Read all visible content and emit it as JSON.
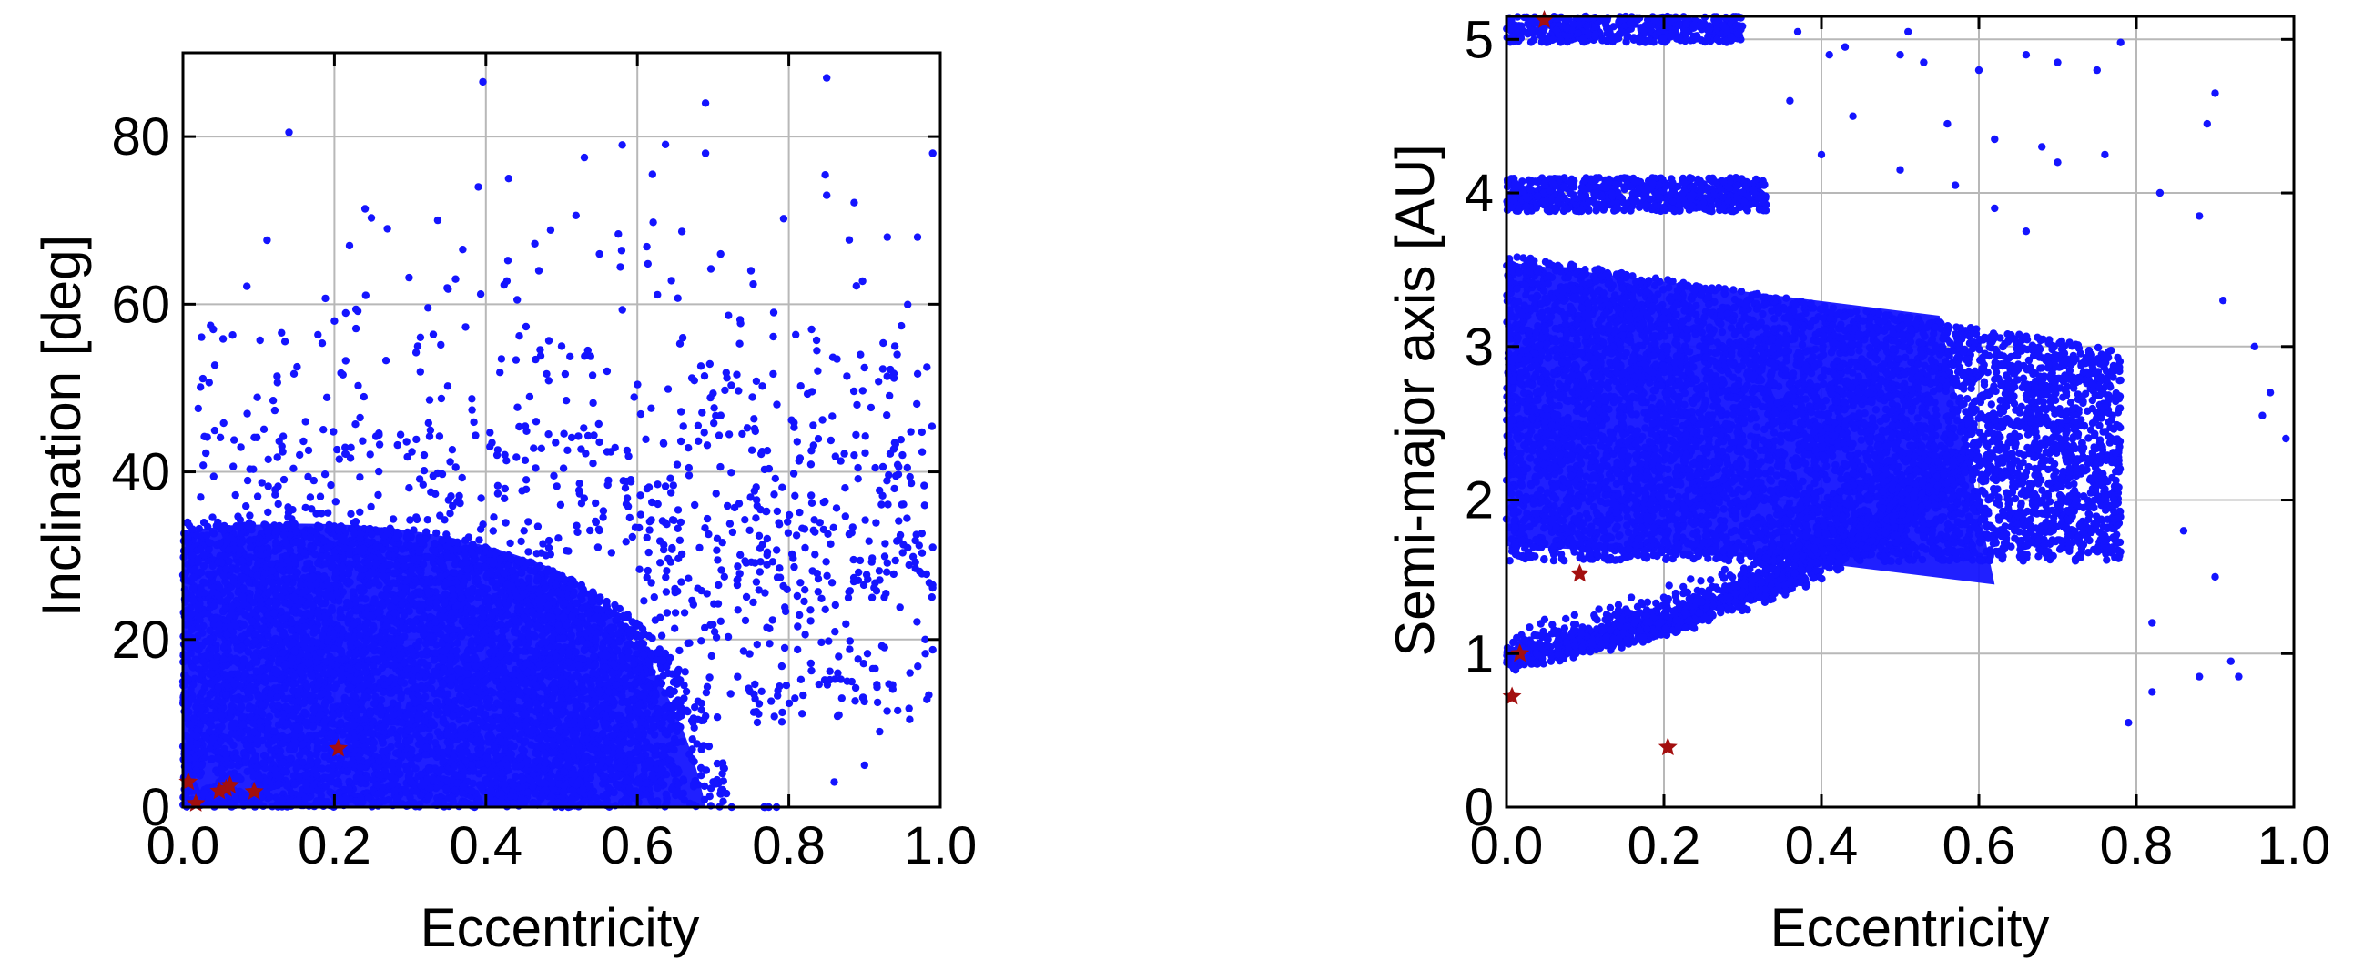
{
  "colors": {
    "asteroids": "#1414ff",
    "highlighted": "#a30f0f",
    "grid": "#b8b8b8",
    "frame": "#000000"
  },
  "chart_data": [
    {
      "type": "scatter",
      "xlabel": "Eccentricity",
      "ylabel": "Inclination [deg]",
      "xlim": [
        0.0,
        1.0
      ],
      "ylim": [
        0,
        90
      ],
      "xticks": [
        "0.0",
        "0.2",
        "0.4",
        "0.6",
        "0.8",
        "1.0"
      ],
      "xtick_values": [
        0.0,
        0.2,
        0.4,
        0.6,
        0.8,
        1.0
      ],
      "yticks": [
        "0",
        "20",
        "40",
        "60",
        "80"
      ],
      "ytick_values": [
        0,
        20,
        40,
        60,
        80
      ],
      "grid": true,
      "series": [
        {
          "marker": "dot",
          "color": "#1414ff",
          "density_model": "bulk of points concentrated at e < 0.7, i < 35 deg, with a sparse tail toward high e and high i",
          "points": [
            [
              0.14,
              80.5
            ],
            [
              0.53,
              77.5
            ],
            [
              0.58,
              79
            ],
            [
              0.69,
              84
            ],
            [
              0.69,
              78
            ],
            [
              0.85,
              87
            ],
            [
              0.99,
              78
            ],
            [
              0.85,
              73
            ],
            [
              0.93,
              68
            ],
            [
              0.22,
              67
            ],
            [
              0.27,
              69
            ],
            [
              0.39,
              74
            ],
            [
              0.43,
              75
            ],
            [
              0.62,
              75.5
            ],
            [
              0.36,
              63
            ],
            [
              0.47,
              64
            ],
            [
              0.55,
              66
            ],
            [
              0.71,
              66
            ],
            [
              0.75,
              64
            ],
            [
              0.04,
              57
            ],
            [
              0.2,
              58
            ],
            [
              0.31,
              55
            ],
            [
              0.5,
              55
            ],
            [
              0.56,
              52
            ],
            [
              0.66,
              56
            ],
            [
              0.78,
              59
            ],
            [
              0.83,
              57
            ],
            [
              0.94,
              55
            ],
            [
              0.97,
              68
            ],
            [
              0.89,
              48
            ],
            [
              0.95,
              42
            ],
            [
              0.99,
              31
            ],
            [
              0.98,
              20
            ],
            [
              0.96,
              16
            ],
            [
              0.91,
              25
            ],
            [
              0.92,
              9
            ],
            [
              0.87,
              13
            ],
            [
              0.9,
              5
            ],
            [
              0.86,
              3
            ]
          ]
        },
        {
          "marker": "star",
          "color": "#a30f0f",
          "points": [
            [
              0.007,
              3
            ],
            [
              0.017,
              0.4
            ],
            [
              0.048,
              1.9
            ],
            [
              0.057,
              2.2
            ],
            [
              0.062,
              2.6
            ],
            [
              0.094,
              1.85
            ],
            [
              0.205,
              7.0
            ]
          ]
        }
      ]
    },
    {
      "type": "scatter",
      "xlabel": "Eccentricity",
      "ylabel": "Semi-major axis [AU]",
      "xlim": [
        0.0,
        1.0
      ],
      "ylim": [
        0,
        5.15
      ],
      "xticks": [
        "0.0",
        "0.2",
        "0.4",
        "0.6",
        "0.8",
        "1.0"
      ],
      "xtick_values": [
        0.0,
        0.2,
        0.4,
        0.6,
        0.8,
        1.0
      ],
      "yticks": [
        "0",
        "1",
        "2",
        "3",
        "4",
        "5"
      ],
      "ytick_values": [
        0,
        1,
        2,
        3,
        4,
        5
      ],
      "grid": true,
      "series": [
        {
          "marker": "dot",
          "color": "#1414ff",
          "density_model": "main belt band a 1.6-3.6 AU across e 0-0.75; Hilda group near a 3.9-4.1 AU at e < 0.35; Trojan group near a 5.0-5.15 AU at e < 0.3; near-Earth objects along the perihelion edge a(1-e) > ~0.9 AU",
          "points": [
            [
              0.37,
              5.05
            ],
            [
              0.41,
              4.9
            ],
            [
              0.43,
              4.95
            ],
            [
              0.5,
              4.9
            ],
            [
              0.51,
              5.05
            ],
            [
              0.53,
              4.85
            ],
            [
              0.6,
              4.8
            ],
            [
              0.66,
              4.9
            ],
            [
              0.7,
              4.85
            ],
            [
              0.75,
              4.8
            ],
            [
              0.78,
              4.98
            ],
            [
              0.89,
              4.45
            ],
            [
              0.9,
              4.65
            ],
            [
              0.36,
              4.6
            ],
            [
              0.44,
              4.5
            ],
            [
              0.56,
              4.45
            ],
            [
              0.62,
              4.35
            ],
            [
              0.68,
              4.3
            ],
            [
              0.7,
              4.2
            ],
            [
              0.76,
              4.25
            ],
            [
              0.83,
              4.0
            ],
            [
              0.88,
              3.85
            ],
            [
              0.91,
              3.3
            ],
            [
              0.95,
              3.0
            ],
            [
              0.97,
              2.7
            ],
            [
              0.96,
              2.55
            ],
            [
              0.99,
              2.4
            ],
            [
              0.92,
              0.95
            ],
            [
              0.93,
              0.85
            ],
            [
              0.88,
              0.85
            ],
            [
              0.82,
              0.75
            ],
            [
              0.79,
              0.55
            ],
            [
              0.82,
              1.2
            ],
            [
              0.9,
              1.5
            ],
            [
              0.86,
              1.8
            ],
            [
              0.4,
              4.25
            ],
            [
              0.5,
              4.15
            ],
            [
              0.57,
              4.05
            ],
            [
              0.62,
              3.9
            ],
            [
              0.66,
              3.75
            ]
          ]
        },
        {
          "marker": "star",
          "color": "#a30f0f",
          "points": [
            [
              0.007,
              0.72
            ],
            [
              0.017,
              1.0
            ],
            [
              0.093,
              1.52
            ],
            [
              0.205,
              0.39
            ],
            [
              0.048,
              5.2
            ]
          ]
        }
      ]
    }
  ]
}
